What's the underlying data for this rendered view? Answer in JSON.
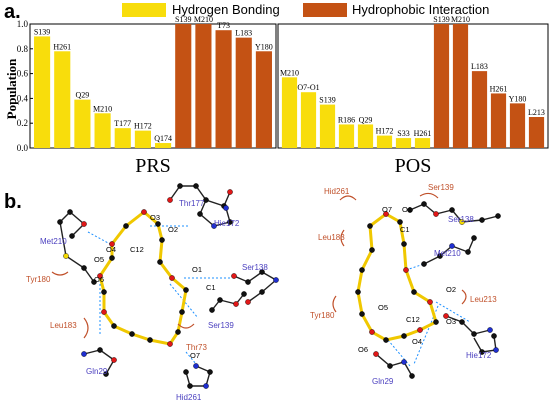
{
  "panel_a_letter": "a.",
  "panel_b_letter": "b.",
  "legend": {
    "hydrogen": "Hydrogen Bonding",
    "hydrophobic": "Hydrophobic Interaction"
  },
  "colors": {
    "hydrogen": "#f8dd0c",
    "hydrophobic": "#c45214",
    "ligand_bond": "#f0c800",
    "hbond_line": "#1e90ff",
    "residue_blue": "#4a3fbf",
    "residue_red": "#c0502a"
  },
  "chart_data": [
    {
      "type": "bar",
      "title": "PRS",
      "ylabel": "Population",
      "ylim": [
        0,
        1.0
      ],
      "yticks": [
        "0.0",
        "0.2",
        "0.4",
        "0.6",
        "0.8",
        "1.0"
      ],
      "grid": false,
      "series": [
        {
          "name": "Hydrogen Bonding",
          "categories": [
            "S139",
            "H261",
            "Q29",
            "M210",
            "T177",
            "H172",
            "Q174"
          ],
          "values": [
            0.9,
            0.78,
            0.39,
            0.28,
            0.16,
            0.14,
            0.04
          ]
        },
        {
          "name": "Hydrophobic Interaction",
          "categories": [
            "S139",
            "M210",
            "T73",
            "L183",
            "Y180"
          ],
          "values": [
            1.0,
            1.0,
            0.95,
            0.89,
            0.78
          ]
        }
      ]
    },
    {
      "type": "bar",
      "title": "POS",
      "ylim": [
        0,
        1.0
      ],
      "grid": false,
      "series": [
        {
          "name": "Hydrogen Bonding",
          "categories": [
            "M210",
            "O7-O1",
            "S139",
            "R186",
            "Q29",
            "H172",
            "S33",
            "H261"
          ],
          "values": [
            0.57,
            0.45,
            0.35,
            0.19,
            0.19,
            0.1,
            0.08,
            0.08
          ]
        },
        {
          "name": "Hydrophobic Interaction",
          "categories": [
            "S139",
            "M210",
            "L183",
            "H261",
            "Y180",
            "L213"
          ],
          "values": [
            1.0,
            1.0,
            0.62,
            0.44,
            0.36,
            0.25
          ]
        }
      ]
    }
  ],
  "diagram_left": {
    "residues_blue": [
      "Thr177",
      "Hie172",
      "Met210",
      "Ser138",
      "Ser139",
      "Gln29",
      "Hid261"
    ],
    "residues_red": [
      "Tyr180",
      "Leu183",
      "Thr73"
    ],
    "atoms": [
      "O3",
      "O2",
      "O4",
      "C12",
      "O5",
      "O6",
      "O1",
      "C1",
      "O7"
    ]
  },
  "diagram_right": {
    "residues_blue": [
      "Ser138",
      "Met210",
      "Hie172",
      "Gln29"
    ],
    "residues_red": [
      "Hid261",
      "Ser139",
      "Leu183",
      "Leu213",
      "Tyr180"
    ],
    "atoms": [
      "O7",
      "O1",
      "C1",
      "O2",
      "O3",
      "O4",
      "C12",
      "O5",
      "O6"
    ]
  }
}
